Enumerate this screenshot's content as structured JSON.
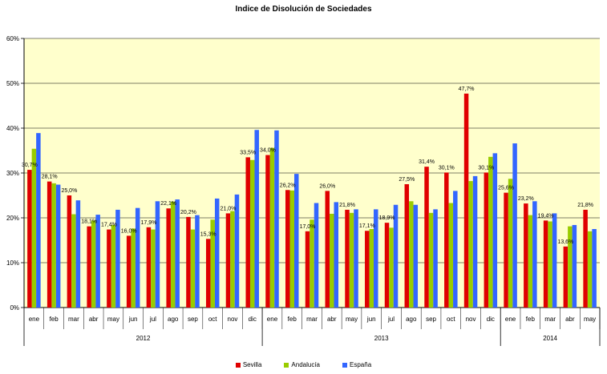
{
  "chart_data": {
    "type": "bar",
    "title": "Indice de Disolución de Sociedades",
    "ylim": [
      0,
      60
    ],
    "yticks": [
      "0%",
      "10%",
      "20%",
      "30%",
      "40%",
      "50%",
      "60%"
    ],
    "grid": true,
    "legend_position": "bottom",
    "categories": [
      "ene",
      "feb",
      "mar",
      "abr",
      "may",
      "jun",
      "jul",
      "ago",
      "sep",
      "oct",
      "nov",
      "dic",
      "ene",
      "feb",
      "mar",
      "abr",
      "may",
      "jun",
      "jul",
      "ago",
      "sep",
      "oct",
      "nov",
      "dic",
      "ene",
      "feb",
      "mar",
      "abr",
      "may"
    ],
    "years": [
      {
        "label": "2012",
        "count": 12
      },
      {
        "label": "2013",
        "count": 12
      },
      {
        "label": "2014",
        "count": 5
      }
    ],
    "series": [
      {
        "name": "Sevilla",
        "color": "#e00000",
        "values": [
          30.7,
          28.1,
          25.0,
          18.1,
          17.4,
          16.0,
          17.9,
          22.1,
          20.2,
          15.3,
          21.0,
          33.5,
          34.0,
          26.2,
          17.0,
          26.0,
          21.8,
          17.1,
          18.9,
          27.5,
          31.4,
          30.1,
          47.7,
          30.1,
          25.6,
          23.2,
          19.4,
          13.6,
          21.8
        ]
      },
      {
        "name": "Andalucía",
        "color": "#99cc00",
        "values": [
          35.4,
          27.7,
          20.8,
          19.4,
          18.4,
          17.6,
          17.4,
          23.6,
          17.4,
          19.6,
          21.5,
          32.9,
          35.6,
          26.1,
          19.6,
          20.9,
          21.1,
          17.5,
          17.8,
          23.7,
          21.1,
          23.3,
          28.2,
          33.6,
          28.7,
          20.6,
          19.2,
          18.1,
          17.0
        ]
      },
      {
        "name": "España",
        "color": "#3366ff",
        "values": [
          38.9,
          27.4,
          23.9,
          20.7,
          21.8,
          22.2,
          23.7,
          24.1,
          20.6,
          24.3,
          25.2,
          39.6,
          39.5,
          29.8,
          23.3,
          23.5,
          21.9,
          21.9,
          22.9,
          22.9,
          21.9,
          26.0,
          29.3,
          34.4,
          36.6,
          23.7,
          21.0,
          18.4,
          17.5
        ]
      }
    ],
    "data_labels": [
      {
        "index": 0,
        "text": "30,7%"
      },
      {
        "index": 1,
        "text": "28,1%"
      },
      {
        "index": 2,
        "text": "25,0%"
      },
      {
        "index": 3,
        "text": "18,1%"
      },
      {
        "index": 4,
        "text": "17,4%"
      },
      {
        "index": 5,
        "text": "16,0%"
      },
      {
        "index": 6,
        "text": "17,9%"
      },
      {
        "index": 7,
        "text": "22,1%"
      },
      {
        "index": 8,
        "text": "20,2%"
      },
      {
        "index": 9,
        "text": "15,3%"
      },
      {
        "index": 10,
        "text": "21,0%"
      },
      {
        "index": 11,
        "text": "33,5%"
      },
      {
        "index": 12,
        "text": "34,0%"
      },
      {
        "index": 13,
        "text": "26,2%"
      },
      {
        "index": 14,
        "text": "17,0%"
      },
      {
        "index": 15,
        "text": "26,0%"
      },
      {
        "index": 16,
        "text": "21,8%"
      },
      {
        "index": 17,
        "text": "17,1%"
      },
      {
        "index": 18,
        "text": "18,9%"
      },
      {
        "index": 19,
        "text": "27,5%"
      },
      {
        "index": 20,
        "text": "31,4%"
      },
      {
        "index": 21,
        "text": "30,1%"
      },
      {
        "index": 22,
        "text": "47,7%"
      },
      {
        "index": 23,
        "text": "30,1%"
      },
      {
        "index": 24,
        "text": "25,6%"
      },
      {
        "index": 25,
        "text": "23,2%"
      },
      {
        "index": 26,
        "text": "19,4%"
      },
      {
        "index": 27,
        "text": "13,6%"
      },
      {
        "index": 28,
        "text": "21,8%"
      }
    ],
    "plot_background": "#ffffcc"
  }
}
